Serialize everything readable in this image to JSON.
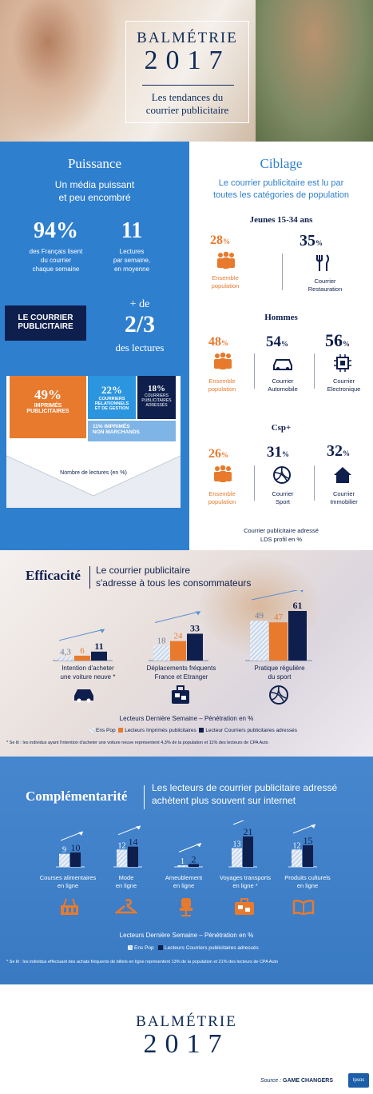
{
  "header": {
    "brand": "BALMÉTRIE",
    "year": "2017",
    "subtitle_line1": "Les tendances du",
    "subtitle_line2": "courrier publicitaire"
  },
  "puissance": {
    "title": "Puissance",
    "tagline1": "Un média puissant",
    "tagline2": "et peu encombré",
    "stat1_value": "94%",
    "stat1_l1": "des Français lisent",
    "stat1_l2": "du courrier",
    "stat1_l3": "chaque semaine",
    "stat2_value": "11",
    "stat2_l1": "Lectures",
    "stat2_l2": "par semaine,",
    "stat2_l3": "en moyenne",
    "badge_l1": "LE COURRIER",
    "badge_l2": "PUBLICITAIRE",
    "plus_de": "+ de",
    "fraction": "2/3",
    "des_lectures": "des lectures",
    "env_imprimes_pct": "49%",
    "env_imprimes_l1": "IMPRIMÉS",
    "env_imprimes_l2": "PUBLICITAIRES",
    "env_rel_pct": "22%",
    "env_rel_l1": "COURRIERS",
    "env_rel_l2": "RELATIONNELS",
    "env_rel_l3": "ET DE GESTION",
    "env_adr_pct": "18%",
    "env_adr_l1": "COURRIERS",
    "env_adr_l2": "PUBLICITAIRES",
    "env_adr_l3": "ADRESSÉS",
    "env_nm_l1": "11% IMPRIMÉS",
    "env_nm_l2": "NON MARCHANDS",
    "env_caption": "Nombre de lectures (en %)"
  },
  "ciblage": {
    "title": "Ciblage",
    "intro1": "Le courrier publicitaire est lu par",
    "intro2": "toutes les catégories de population",
    "g1_title": "Jeunes 15-34 ans",
    "g1_a_val": "28",
    "g1_a_l1": "Ensemble",
    "g1_a_l2": "population",
    "g1_b_val": "35",
    "g1_b_l1": "Courrier",
    "g1_b_l2": "Restauration",
    "g2_title": "Hommes",
    "g2_a_val": "48",
    "g2_a_l1": "Ensemble",
    "g2_a_l2": "population",
    "g2_b_val": "54",
    "g2_b_l1": "Courrier",
    "g2_b_l2": "Automobile",
    "g2_c_val": "56",
    "g2_c_l1": "Courrier",
    "g2_c_l2": "Electronique",
    "g3_title": "Csp+",
    "g3_a_val": "26",
    "g3_a_l1": "Ensemble",
    "g3_a_l2": "population",
    "g3_b_val": "31",
    "g3_b_l1": "Courrier",
    "g3_b_l2": "Sport",
    "g3_c_val": "32",
    "g3_c_l1": "Courrier",
    "g3_c_l2": "Immobilier",
    "pct": "%",
    "foot1": "Courrier publicitaire adressé",
    "foot2": "LDS profil en %"
  },
  "efficacite": {
    "title": "Efficacité",
    "sub1": "Le courrier publicitaire",
    "sub2": "s'adresse à tous les consommateurs",
    "g1_l1": "Intention d'acheter",
    "g1_l2": "une voiture neuve",
    "g1_star": "*",
    "g2_l1": "Déplacements fréquents",
    "g2_l2": "France et Etranger",
    "g3_l1": "Pratique régulière",
    "g3_l2": "du sport",
    "caption": "Lecteurs Dernière Semaine – Pénétration en %",
    "legend_ens": "Ens Pop",
    "legend_imp": "Lecteurs Imprimés publicitaires",
    "legend_cour": "Lecteur Courriers publicitaires adressés",
    "note": "* Se lit : les individus ayant l'intention d'acheter une voiture neuve représentent 4,3% de la population et 11% des lecteurs de CPA Auto"
  },
  "complementarite": {
    "title": "Complémentarité",
    "sub1": "Les lecteurs de courrier publicitaire adressé",
    "sub2": "achètent plus souvent sur internet",
    "c1_l1": "Courses alimentaires",
    "c1_l2": "en ligne",
    "c2_l1": "Mode",
    "c2_l2": "en ligne",
    "c3_l1": "Ameublement",
    "c3_l2": "en ligne",
    "c4_l1": "Voyages transports",
    "c4_l2": "en ligne",
    "c4_star": "*",
    "c5_l1": "Produits culturels",
    "c5_l2": "en ligne",
    "caption": "Lecteurs Dernière Semaine – Pénétration en %",
    "legend_ens": "Ens Pop",
    "legend_cour": "Lecteurs Courriers publicitaires adressés",
    "note": "* Se lit : les individus effectuant des achats fréquents de billets en ligne représentent 13% de la population et 21% des lecteurs de CPA Auto"
  },
  "footer": {
    "brand": "BALMÉTRIE",
    "year": "2017",
    "source_label": "Source :",
    "source_name": "GAME CHANGERS",
    "ipsos": "Ipsos"
  },
  "colors": {
    "blue": "#2f7fcf",
    "navy": "#0f1f4d",
    "orange": "#e87a2d"
  },
  "chart_data": [
    {
      "type": "bar",
      "categories": [
        "Intention d'acheter une voiture neuve",
        "Déplacements fréquents France et Etranger",
        "Pratique régulière du sport"
      ],
      "series": [
        {
          "name": "Ens Pop",
          "values": [
            4.3,
            18,
            49
          ]
        },
        {
          "name": "Lecteurs Imprimés publicitaires",
          "values": [
            6,
            24,
            47
          ]
        },
        {
          "name": "Lecteur Courriers publicitaires adressés",
          "values": [
            11,
            33,
            61
          ]
        }
      ],
      "title": "",
      "ylim": [
        0,
        61
      ],
      "value_labels": [
        [
          "4,3",
          "6",
          "11"
        ],
        [
          "18",
          "24",
          "33"
        ],
        [
          "49",
          "47",
          "61"
        ]
      ]
    },
    {
      "type": "bar",
      "categories": [
        "Courses alimentaires en ligne",
        "Mode en ligne",
        "Ameublement en ligne",
        "Voyages transports en ligne",
        "Produits culturels en ligne"
      ],
      "series": [
        {
          "name": "Ens Pop",
          "values": [
            9,
            12,
            1,
            13,
            12
          ]
        },
        {
          "name": "Lecteurs Courriers publicitaires adressés",
          "values": [
            10,
            14,
            2,
            21,
            15
          ]
        }
      ],
      "title": "",
      "ylim": [
        0,
        21
      ]
    }
  ]
}
